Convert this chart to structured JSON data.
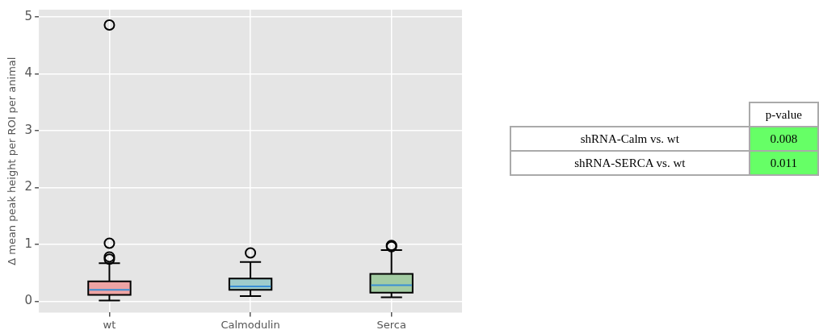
{
  "chart_data": [
    {
      "type": "box",
      "ylabel": "Δ mean peak height per ROI per animal",
      "categories": [
        "wt",
        "Calmodulin",
        "Serca"
      ],
      "colors": [
        "#eea3a3",
        "#9ecccc",
        "#a3cca3"
      ],
      "boxes": [
        {
          "low": 0.01,
          "q1": 0.11,
          "median": 0.2,
          "q3": 0.35,
          "high": 0.67,
          "outliers": [
            0.74,
            0.78,
            1.02,
            4.86
          ]
        },
        {
          "low": 0.09,
          "q1": 0.2,
          "median": 0.26,
          "q3": 0.4,
          "high": 0.69,
          "outliers": [
            0.85
          ]
        },
        {
          "low": 0.07,
          "q1": 0.15,
          "median": 0.28,
          "q3": 0.48,
          "high": 0.9,
          "outliers": [
            0.96,
            0.98
          ]
        }
      ],
      "ylim": [
        -0.2,
        5.13
      ],
      "yticks": [
        0,
        1,
        2,
        3,
        4,
        5
      ],
      "grid": true,
      "marker": "circle"
    },
    {
      "type": "other",
      "title": "p-value",
      "categories": [
        "shRNA-Calm vs. wt",
        "shRNA-SERCA vs. wt"
      ],
      "values": [
        0.008,
        0.011
      ],
      "colors": [
        "#66ff66",
        "#66ff66"
      ],
      "data_labels": true
    }
  ]
}
